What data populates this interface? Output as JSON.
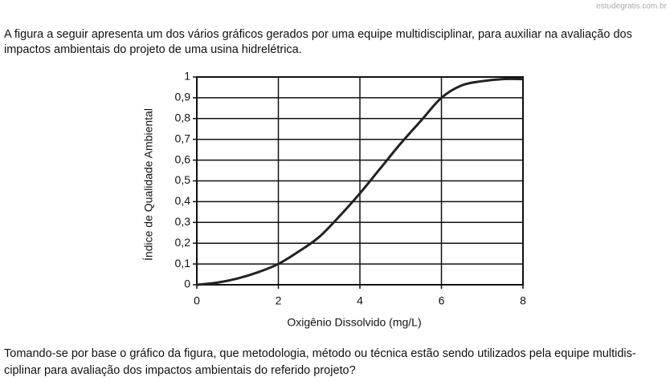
{
  "watermark": "estudegratis.com.br",
  "intro": [
    "A figura a seguir apresenta um dos vários gráficos gerados por uma equipe multidisciplinar, para auxiliar na avaliação dos",
    "impactos ambientais do projeto de uma usina hidrelétrica."
  ],
  "chart_data": {
    "type": "line",
    "x_label": "Oxigênio Dissolvido (mg/L)",
    "y_label": "Índice de Qualidade Ambiental",
    "x": [
      0,
      0.5,
      1,
      1.5,
      2,
      2.5,
      3,
      3.5,
      4,
      4.5,
      5,
      5.5,
      6,
      6.5,
      7,
      7.5,
      8
    ],
    "values": [
      0,
      0.01,
      0.03,
      0.06,
      0.1,
      0.16,
      0.23,
      0.33,
      0.44,
      0.56,
      0.68,
      0.79,
      0.9,
      0.96,
      0.98,
      0.99,
      0.99
    ],
    "color": "#222222",
    "xlim": [
      0,
      8
    ],
    "xticks": [
      0,
      2,
      4,
      6,
      8
    ],
    "ylim": [
      0,
      1
    ],
    "yticks": [
      0,
      {
        "value": 0.1,
        "label": "0,1"
      },
      {
        "value": 0.2,
        "label": "0,2"
      },
      {
        "value": 0.3,
        "label": "0,3"
      },
      {
        "value": 0.4,
        "label": "0,4"
      },
      {
        "value": 0.5,
        "label": "0,5"
      },
      {
        "value": 0.6,
        "label": "0,6"
      },
      {
        "value": 0.7,
        "label": "0,7"
      },
      {
        "value": 0.8,
        "label": "0,8"
      },
      {
        "value": 0.9,
        "label": "0,9"
      },
      1
    ],
    "grid": true
  },
  "question": [
    "Tomando-se por base o gráfico da figura, que metodologia, método ou técnica estão sendo utilizados pela equipe multidis-",
    "ciplinar para avaliação dos impactos ambientais do referido projeto?"
  ]
}
